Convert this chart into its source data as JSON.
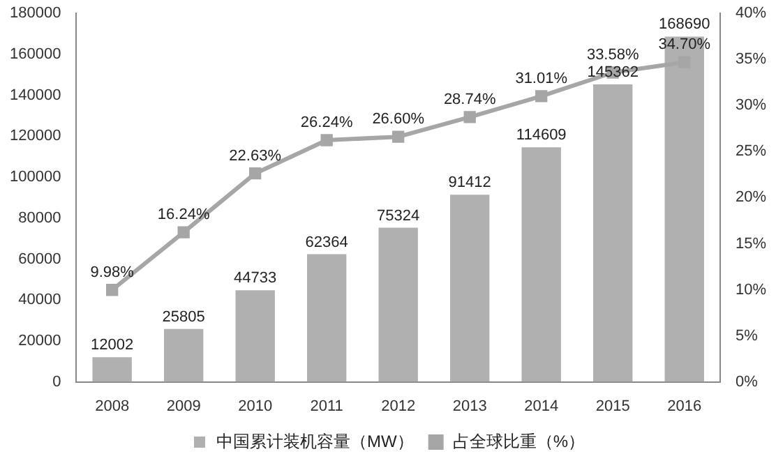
{
  "chart_data": {
    "type": "bar",
    "categories": [
      "2008",
      "2009",
      "2010",
      "2011",
      "2012",
      "2013",
      "2014",
      "2015",
      "2016"
    ],
    "series": [
      {
        "name": "中国累计装机容量（MW）",
        "color": "#b0b0b0",
        "values": [
          12002,
          25805,
          44733,
          62364,
          75324,
          91412,
          114609,
          145362,
          168690
        ],
        "value_labels": [
          "12002",
          "25805",
          "44733",
          "62364",
          "75324",
          "91412",
          "114609",
          "145362",
          "168690"
        ]
      },
      {
        "name": "占全球比重（%）",
        "type": "line",
        "axis": "y2",
        "color": "#a6a6a6",
        "marker": "square",
        "values": [
          9.98,
          16.24,
          22.63,
          26.24,
          26.6,
          28.74,
          31.01,
          33.58,
          34.7
        ],
        "value_labels": [
          "9.98%",
          "16.24%",
          "22.63%",
          "26.24%",
          "26.60%",
          "28.74%",
          "31.01%",
          "33.58%",
          "34.70%"
        ]
      }
    ],
    "ylim": [
      0,
      180000
    ],
    "yticks": [
      0,
      20000,
      40000,
      60000,
      80000,
      100000,
      120000,
      140000,
      160000,
      180000
    ],
    "y2lim": [
      0,
      40
    ],
    "y2ticks": [
      {
        "value": 0,
        "label": "0%"
      },
      {
        "value": 5,
        "label": "5%"
      },
      {
        "value": 10,
        "label": "10%"
      },
      {
        "value": 15,
        "label": "15%"
      },
      {
        "value": 20,
        "label": "20%"
      },
      {
        "value": 25,
        "label": "25%"
      },
      {
        "value": 30,
        "label": "30%"
      },
      {
        "value": 35,
        "label": "35%"
      },
      {
        "value": 40,
        "label": "40%"
      }
    ],
    "grid": false,
    "legend": "bottom"
  }
}
